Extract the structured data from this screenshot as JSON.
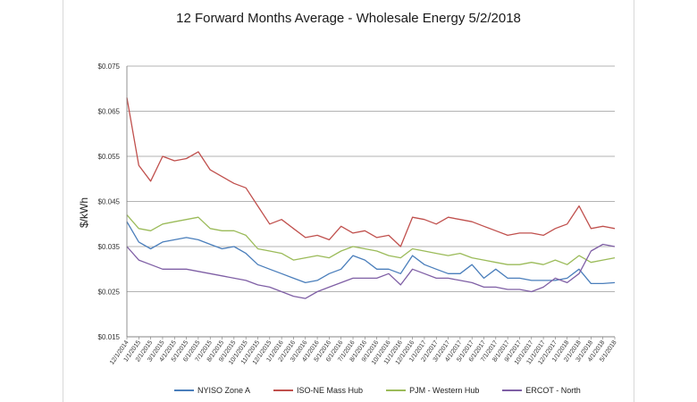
{
  "chart_data": {
    "type": "line",
    "title": "12 Forward Months Average - Wholesale Energy 5/2/2018",
    "ylabel": "$/kWh",
    "ylim": [
      0.015,
      0.075
    ],
    "yticks": [
      "$0.075",
      "$0.065",
      "$0.055",
      "$0.045",
      "$0.035",
      "$0.025",
      "$0.015"
    ],
    "ytick_values": [
      0.075,
      0.065,
      0.055,
      0.045,
      0.035,
      0.025,
      0.015
    ],
    "xticks": [
      "12/1/2014",
      "1/1/2015",
      "2/1/2015",
      "3/1/2015",
      "4/1/2015",
      "5/1/2015",
      "6/1/2015",
      "7/1/2015",
      "8/1/2015",
      "9/1/2015",
      "10/1/2015",
      "11/1/2015",
      "12/1/2015",
      "1/1/2016",
      "2/1/2016",
      "3/1/2016",
      "4/1/2016",
      "5/1/2016",
      "6/1/2016",
      "7/1/2016",
      "8/1/2016",
      "9/1/2016",
      "10/1/2016",
      "11/1/2016",
      "12/1/2016",
      "1/1/2017",
      "2/1/2017",
      "3/1/2017",
      "4/1/2017",
      "5/1/2017",
      "6/1/2017",
      "7/1/2017",
      "8/1/2017",
      "9/1/2017",
      "10/1/2017",
      "11/1/2017",
      "12/1/2017",
      "1/1/2018",
      "2/1/2018",
      "3/1/2018",
      "4/1/2018",
      "5/1/2018"
    ],
    "grid": true,
    "legend_position": "bottom",
    "series": [
      {
        "name": "NYISO Zone A",
        "color": "#4a7ebb",
        "values": [
          0.0405,
          0.036,
          0.0345,
          0.036,
          0.0365,
          0.037,
          0.0365,
          0.0355,
          0.0345,
          0.035,
          0.0335,
          0.031,
          0.03,
          0.029,
          0.028,
          0.027,
          0.0275,
          0.029,
          0.03,
          0.033,
          0.032,
          0.03,
          0.03,
          0.029,
          0.033,
          0.031,
          0.03,
          0.029,
          0.029,
          0.031,
          0.028,
          0.03,
          0.028,
          0.028,
          0.0275,
          0.0275,
          0.0275,
          0.028,
          0.03,
          0.0268,
          0.0268,
          0.027
        ]
      },
      {
        "name": "ISO-NE Mass Hub",
        "color": "#c0504d",
        "values": [
          0.068,
          0.053,
          0.0495,
          0.055,
          0.054,
          0.0545,
          0.056,
          0.052,
          0.0505,
          0.049,
          0.048,
          0.044,
          0.04,
          0.041,
          0.039,
          0.037,
          0.0375,
          0.0365,
          0.0395,
          0.038,
          0.0385,
          0.037,
          0.0375,
          0.035,
          0.0415,
          0.041,
          0.04,
          0.0415,
          0.041,
          0.0405,
          0.0395,
          0.0385,
          0.0375,
          0.038,
          0.038,
          0.0375,
          0.039,
          0.04,
          0.044,
          0.039,
          0.0395,
          0.039
        ]
      },
      {
        "name": "PJM - Western Hub",
        "color": "#9bbb59",
        "values": [
          0.042,
          0.039,
          0.0385,
          0.04,
          0.0405,
          0.041,
          0.0415,
          0.039,
          0.0385,
          0.0385,
          0.0375,
          0.0345,
          0.034,
          0.0335,
          0.032,
          0.0325,
          0.033,
          0.0325,
          0.034,
          0.035,
          0.0345,
          0.034,
          0.033,
          0.0325,
          0.0345,
          0.034,
          0.0335,
          0.033,
          0.0335,
          0.0325,
          0.032,
          0.0315,
          0.031,
          0.031,
          0.0315,
          0.031,
          0.032,
          0.031,
          0.033,
          0.0315,
          0.032,
          0.0325
        ]
      },
      {
        "name": "ERCOT - North",
        "color": "#7f5fa5",
        "values": [
          0.035,
          0.032,
          0.031,
          0.03,
          0.03,
          0.03,
          0.0295,
          0.029,
          0.0285,
          0.028,
          0.0275,
          0.0265,
          0.026,
          0.025,
          0.024,
          0.0235,
          0.025,
          0.026,
          0.027,
          0.028,
          0.028,
          0.028,
          0.029,
          0.0265,
          0.03,
          0.029,
          0.028,
          0.028,
          0.0275,
          0.027,
          0.026,
          0.026,
          0.0255,
          0.0255,
          0.025,
          0.026,
          0.028,
          0.027,
          0.029,
          0.034,
          0.0355,
          0.035
        ]
      }
    ]
  }
}
